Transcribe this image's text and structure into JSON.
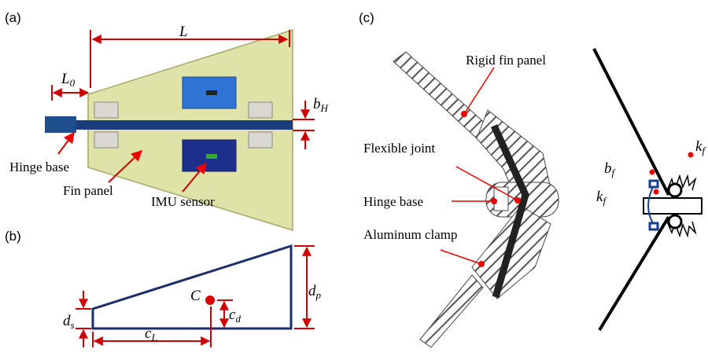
{
  "panels": [
    {
      "label": "(a)",
      "dimensions": [
        {
          "main": "L"
        },
        {
          "main": "L",
          "sub": "0"
        },
        {
          "main": "b",
          "sub": "H"
        }
      ],
      "callouts": [
        "Hinge base",
        "Fin panel",
        "IMU sensor"
      ]
    },
    {
      "label": "(b)",
      "symbols": [
        {
          "main": "C"
        },
        {
          "main": "c",
          "sub": "d"
        },
        {
          "main": "d",
          "sub": "p"
        },
        {
          "main": "d",
          "sub": "s"
        },
        {
          "main": "c",
          "sub": "L"
        }
      ]
    },
    {
      "label": "(c)",
      "callouts": [
        "Rigid fin panel",
        "Flexible joint",
        "Hinge base",
        "Aluminum clamp"
      ],
      "symbols": [
        {
          "main": "b",
          "sub": "f"
        },
        {
          "main": "k",
          "sub": "f"
        },
        {
          "main": "k",
          "sub": "f"
        }
      ]
    }
  ]
}
